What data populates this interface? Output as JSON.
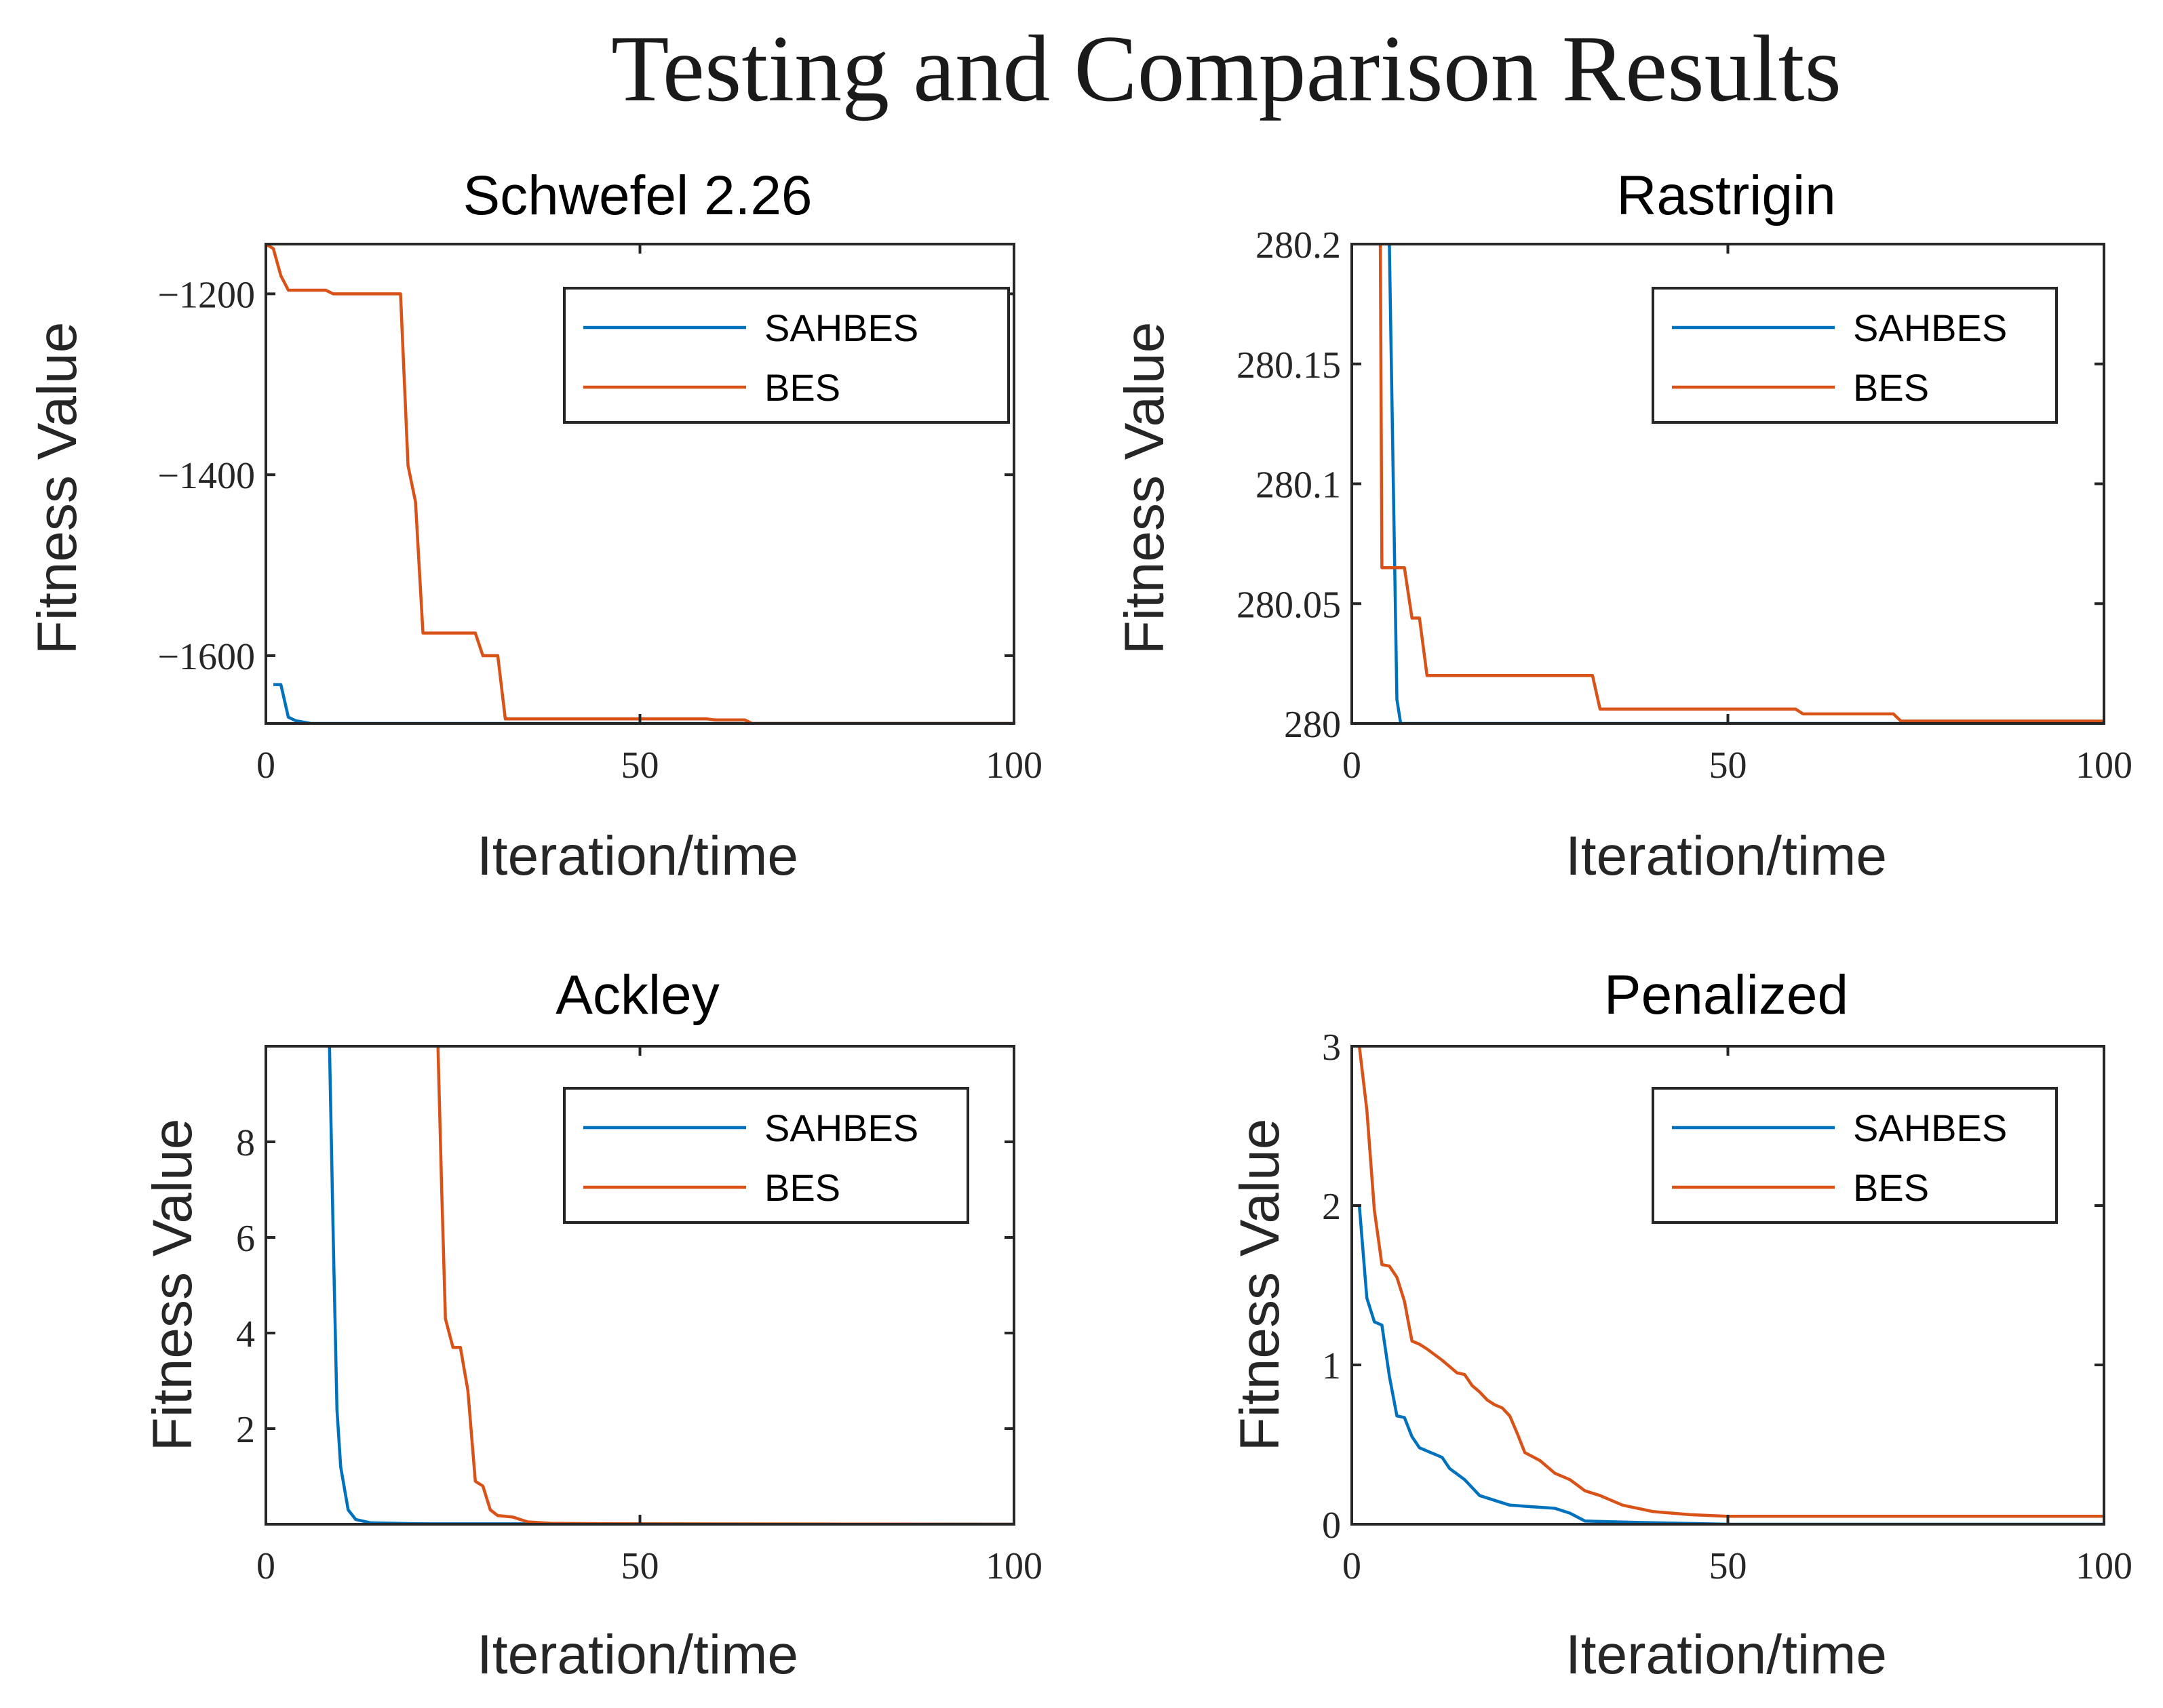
{
  "title": "Testing and Comparison Results",
  "colors": {
    "SAHBES": "#0072BD",
    "BES": "#D95319",
    "axis": "#262626"
  },
  "chart_data": [
    {
      "type": "line",
      "title": "Schwefel 2.26",
      "xlabel": "Iteration/time",
      "ylabel": "Fitness Value",
      "xlim": [
        0,
        100
      ],
      "ylim": [
        -1675,
        -1145
      ],
      "xticks": [
        0,
        50,
        100
      ],
      "xtick_labels": [
        "0",
        "50",
        "100"
      ],
      "yticks": [
        -1600,
        -1400,
        -1200
      ],
      "ytick_labels": [
        "−1600",
        "−1400",
        "−1200"
      ],
      "legend": [
        "SAHBES",
        "BES"
      ],
      "legend_position": "top-right",
      "series": [
        {
          "name": "SAHBES",
          "x": [
            1,
            2,
            3,
            4,
            6,
            100
          ],
          "y": [
            -1632,
            -1632,
            -1668,
            -1672,
            -1675,
            -1675
          ]
        },
        {
          "name": "BES",
          "x": [
            0,
            1,
            2,
            3,
            8,
            9,
            18,
            19,
            20,
            21,
            28,
            29,
            31,
            32,
            59,
            60,
            64,
            65,
            100
          ],
          "y": [
            -1145,
            -1150,
            -1180,
            -1196,
            -1196,
            -1200,
            -1200,
            -1390,
            -1430,
            -1575,
            -1575,
            -1600,
            -1600,
            -1670,
            -1670,
            -1671,
            -1671,
            -1675,
            -1675
          ]
        }
      ]
    },
    {
      "type": "line",
      "title": "Rastrigin",
      "xlabel": "Iteration/time",
      "ylabel": "Fitness Value",
      "xlim": [
        0,
        100
      ],
      "ylim": [
        280,
        280.2
      ],
      "xticks": [
        0,
        50,
        100
      ],
      "xtick_labels": [
        "0",
        "50",
        "100"
      ],
      "yticks": [
        280,
        280.05,
        280.1,
        280.15,
        280.2
      ],
      "ytick_labels": [
        "280",
        "280.05",
        "280.1",
        "280.15",
        "280.2"
      ],
      "legend": [
        "SAHBES",
        "BES"
      ],
      "legend_position": "top-right",
      "series": [
        {
          "name": "SAHBES",
          "x": [
            5,
            6,
            6.5,
            100
          ],
          "y": [
            280.2,
            280.01,
            280.0,
            280.0
          ]
        },
        {
          "name": "BES",
          "x": [
            3.8,
            4,
            4.2,
            7,
            8,
            9,
            10,
            11,
            32,
            33,
            59,
            60,
            72,
            73,
            100
          ],
          "y": [
            280.2,
            280.065,
            280.065,
            280.065,
            280.044,
            280.044,
            280.02,
            280.02,
            280.02,
            280.006,
            280.006,
            280.004,
            280.004,
            280.001,
            280.001
          ]
        }
      ]
    },
    {
      "type": "line",
      "title": "Ackley",
      "xlabel": "Iteration/time",
      "ylabel": "Fitness Value",
      "xlim": [
        0,
        100
      ],
      "ylim": [
        0,
        10
      ],
      "xticks": [
        0,
        50,
        100
      ],
      "xtick_labels": [
        "0",
        "50",
        "100"
      ],
      "yticks": [
        2,
        4,
        6,
        8
      ],
      "ytick_labels": [
        "2",
        "4",
        "6",
        "8"
      ],
      "legend": [
        "SAHBES",
        "BES"
      ],
      "legend_position": "top-right",
      "series": [
        {
          "name": "SAHBES",
          "x": [
            8.5,
            9,
            9.5,
            10,
            11,
            12,
            14,
            20,
            100
          ],
          "y": [
            10,
            6,
            2.4,
            1.2,
            0.3,
            0.1,
            0.03,
            0.01,
            0.0
          ]
        },
        {
          "name": "BES",
          "x": [
            23,
            23.5,
            24,
            25,
            26,
            27,
            28,
            29,
            30,
            31,
            33,
            35,
            38,
            45,
            100
          ],
          "y": [
            10,
            7,
            4.3,
            3.7,
            3.7,
            2.8,
            0.9,
            0.8,
            0.3,
            0.18,
            0.15,
            0.05,
            0.02,
            0.01,
            0.0
          ]
        }
      ]
    },
    {
      "type": "line",
      "title": "Penalized",
      "xlabel": "Iteration/time",
      "ylabel": "Fitness Value",
      "xlim": [
        0,
        100
      ],
      "ylim": [
        0,
        3
      ],
      "xticks": [
        0,
        50,
        100
      ],
      "xtick_labels": [
        "0",
        "50",
        "100"
      ],
      "yticks": [
        0,
        1,
        2,
        3
      ],
      "ytick_labels": [
        "0",
        "1",
        "2",
        "3"
      ],
      "legend": [
        "SAHBES",
        "BES"
      ],
      "legend_position": "top-right",
      "series": [
        {
          "name": "SAHBES",
          "x": [
            1,
            2,
            3,
            4,
            5,
            6,
            7,
            8,
            9,
            10,
            12,
            13,
            15,
            17,
            19,
            21,
            24,
            27,
            29,
            31,
            35,
            40,
            50,
            100
          ],
          "y": [
            2.0,
            1.42,
            1.27,
            1.25,
            0.93,
            0.68,
            0.67,
            0.55,
            0.48,
            0.46,
            0.42,
            0.35,
            0.28,
            0.18,
            0.15,
            0.12,
            0.11,
            0.1,
            0.07,
            0.02,
            0.015,
            0.01,
            0.0,
            0.0
          ]
        },
        {
          "name": "BES",
          "x": [
            1,
            2,
            3,
            4,
            5,
            6,
            7,
            8,
            9,
            10,
            12,
            14,
            15,
            16,
            17,
            18,
            19,
            20,
            21,
            22,
            23,
            25,
            27,
            29,
            31,
            33,
            36,
            40,
            45,
            50,
            100
          ],
          "y": [
            3.0,
            2.6,
            1.97,
            1.63,
            1.62,
            1.55,
            1.4,
            1.15,
            1.13,
            1.1,
            1.03,
            0.95,
            0.94,
            0.87,
            0.83,
            0.78,
            0.75,
            0.73,
            0.68,
            0.57,
            0.45,
            0.4,
            0.32,
            0.28,
            0.21,
            0.18,
            0.12,
            0.08,
            0.06,
            0.05,
            0.05
          ]
        }
      ]
    }
  ]
}
